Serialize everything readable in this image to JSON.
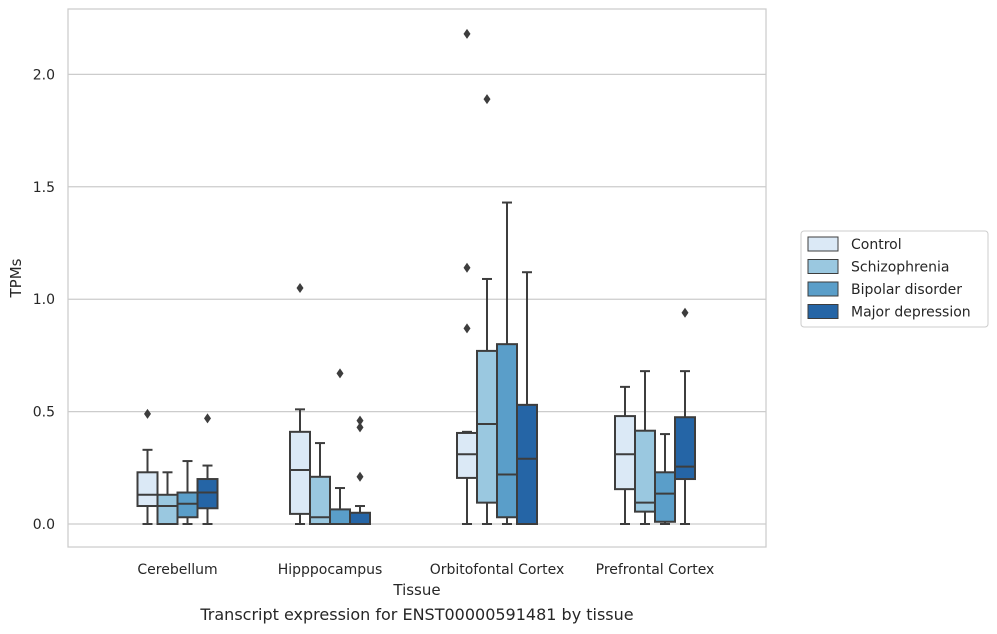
{
  "chart_data": {
    "type": "box",
    "caption": "Transcript expression for ENST00000591481 by tissue",
    "xlabel": "Tissue",
    "ylabel": "TPMs",
    "ylim": [
      -0.11,
      2.29
    ],
    "yticks": [
      0.0,
      0.5,
      1.0,
      1.5,
      2.0
    ],
    "ytick_labels": [
      "0.0",
      "0.5",
      "1.0",
      "1.5",
      "2.0"
    ],
    "grid": "horizontal",
    "legend_position": "right",
    "categories": [
      "Cerebellum",
      "Hipppocampus",
      "Orbitofontal Cortex",
      "Prefrontal Cortex"
    ],
    "series": [
      {
        "name": "Control",
        "color": "#dbe9f6",
        "boxes": [
          {
            "whislo": 0.0,
            "q1": 0.08,
            "med": 0.13,
            "q3": 0.23,
            "whishi": 0.33,
            "fliers": [
              0.49
            ]
          },
          {
            "whislo": 0.0,
            "q1": 0.045,
            "med": 0.24,
            "q3": 0.41,
            "whishi": 0.51,
            "fliers": [
              1.05
            ]
          },
          {
            "whislo": 0.0,
            "q1": 0.205,
            "med": 0.31,
            "q3": 0.405,
            "whishi": 0.41,
            "fliers": [
              0.87,
              1.14,
              2.18
            ]
          },
          {
            "whislo": 0.0,
            "q1": 0.155,
            "med": 0.31,
            "q3": 0.48,
            "whishi": 0.61,
            "fliers": []
          }
        ]
      },
      {
        "name": "Schizophrenia",
        "color": "#9ac8e0",
        "boxes": [
          {
            "whislo": 0.0,
            "q1": 0.0,
            "med": 0.08,
            "q3": 0.13,
            "whishi": 0.23,
            "fliers": []
          },
          {
            "whislo": 0.0,
            "q1": 0.0,
            "med": 0.03,
            "q3": 0.21,
            "whishi": 0.36,
            "fliers": []
          },
          {
            "whislo": 0.0,
            "q1": 0.095,
            "med": 0.445,
            "q3": 0.77,
            "whishi": 1.09,
            "fliers": [
              1.89
            ]
          },
          {
            "whislo": 0.0,
            "q1": 0.055,
            "med": 0.095,
            "q3": 0.415,
            "whishi": 0.68,
            "fliers": []
          }
        ]
      },
      {
        "name": "Bipolar disorder",
        "color": "#5a9ec9",
        "boxes": [
          {
            "whislo": 0.0,
            "q1": 0.03,
            "med": 0.09,
            "q3": 0.14,
            "whishi": 0.28,
            "fliers": []
          },
          {
            "whislo": 0.0,
            "q1": 0.0,
            "med": 0.0,
            "q3": 0.065,
            "whishi": 0.16,
            "fliers": [
              0.67
            ]
          },
          {
            "whislo": 0.0,
            "q1": 0.03,
            "med": 0.22,
            "q3": 0.8,
            "whishi": 1.43,
            "fliers": []
          },
          {
            "whislo": 0.0,
            "q1": 0.01,
            "med": 0.135,
            "q3": 0.23,
            "whishi": 0.4,
            "fliers": []
          }
        ]
      },
      {
        "name": "Major depression",
        "color": "#2565a6",
        "boxes": [
          {
            "whislo": 0.0,
            "q1": 0.07,
            "med": 0.14,
            "q3": 0.2,
            "whishi": 0.26,
            "fliers": [
              0.47
            ]
          },
          {
            "whislo": 0.0,
            "q1": 0.0,
            "med": 0.0,
            "q3": 0.05,
            "whishi": 0.08,
            "fliers": [
              0.21,
              0.43,
              0.46
            ]
          },
          {
            "whislo": 0.0,
            "q1": 0.0,
            "med": 0.29,
            "q3": 0.53,
            "whishi": 1.12,
            "fliers": []
          },
          {
            "whislo": 0.0,
            "q1": 0.2,
            "med": 0.255,
            "q3": 0.475,
            "whishi": 0.68,
            "fliers": [
              0.94
            ]
          }
        ]
      }
    ]
  }
}
